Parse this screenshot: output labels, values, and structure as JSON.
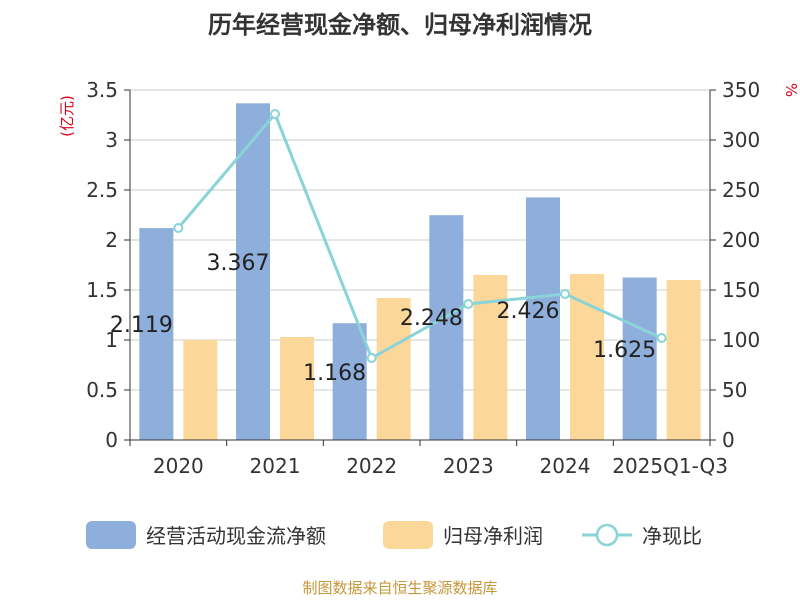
{
  "chart_data": {
    "type": "bar",
    "title": "历年经营现金净额、归母净利润情况",
    "categories": [
      "2020",
      "2021",
      "2022",
      "2023",
      "2024",
      "2025Q1-Q3"
    ],
    "series": [
      {
        "name": "经营活动现金流净额",
        "type": "bar",
        "axis": "left",
        "color": "#8eaedb",
        "values": [
          2.119,
          3.367,
          1.168,
          2.248,
          2.426,
          1.625
        ],
        "labels": [
          "2.119",
          "3.367",
          "1.168",
          "2.248",
          "2.426",
          "1.625"
        ]
      },
      {
        "name": "归母净利润",
        "type": "bar",
        "axis": "left",
        "color": "#fcd79a",
        "values": [
          1.0,
          1.03,
          1.42,
          1.65,
          1.66,
          1.6
        ]
      },
      {
        "name": "净现比",
        "type": "line",
        "axis": "right",
        "color": "#8ad3d9",
        "values": [
          212,
          326,
          82,
          136,
          146,
          102
        ]
      }
    ],
    "y_left": {
      "label": "(亿元)",
      "min": 0,
      "max": 3.5,
      "ticks": [
        "0",
        "0.5",
        "1",
        "1.5",
        "2",
        "2.5",
        "3",
        "3.5"
      ]
    },
    "y_right": {
      "label": "%",
      "min": 0,
      "max": 350,
      "ticks": [
        "0",
        "50",
        "100",
        "150",
        "200",
        "250",
        "300",
        "350"
      ]
    },
    "grid": true,
    "legend_position": "bottom",
    "source": "制图数据来自恒生聚源数据库"
  }
}
